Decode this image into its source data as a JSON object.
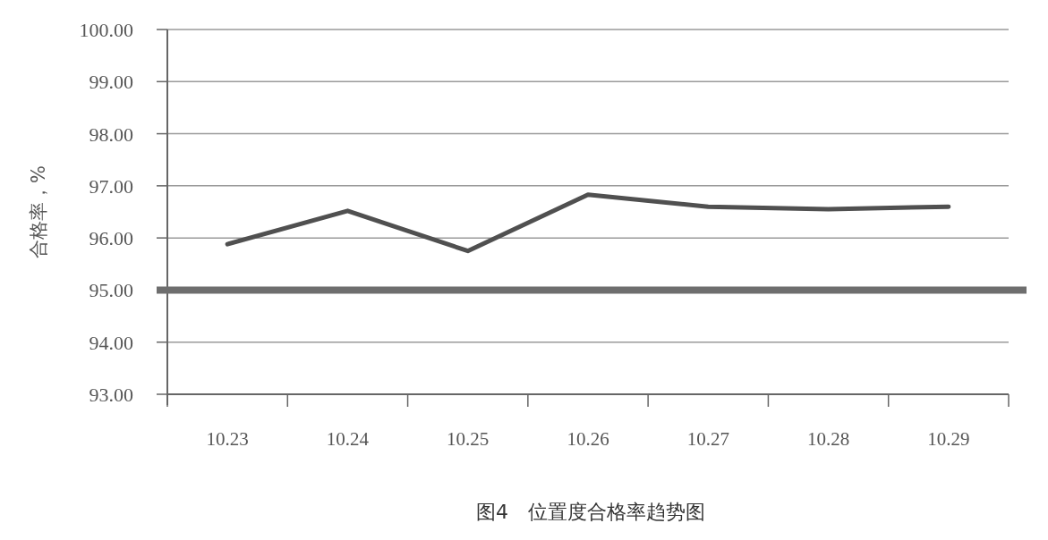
{
  "chart_data": {
    "type": "line",
    "title": "图4　位置度合格率趋势图",
    "ylabel": "合格率，%",
    "categories": [
      "10.23",
      "10.24",
      "10.25",
      "10.26",
      "10.27",
      "10.28",
      "10.29"
    ],
    "series": [
      {
        "color": "#505050",
        "values": [
          95.88,
          96.52,
          95.75,
          96.83,
          96.6,
          96.55,
          96.6
        ]
      }
    ],
    "ylim": [
      93,
      100
    ],
    "yticks": [
      {
        "value": 93,
        "label": "93.00"
      },
      {
        "value": 94,
        "label": "94.00"
      },
      {
        "value": 95,
        "label": "95.00"
      },
      {
        "value": 96,
        "label": "96.00"
      },
      {
        "value": 97,
        "label": "97.00"
      },
      {
        "value": 98,
        "label": "98.00"
      },
      {
        "value": 99,
        "label": "99.00"
      },
      {
        "value": 100,
        "label": "100.00"
      }
    ],
    "ref_lines": [
      {
        "axis": "y",
        "value": 95,
        "color": "#6e6e6e"
      }
    ],
    "grid": "y",
    "marker": "none",
    "line_style": "solid"
  }
}
